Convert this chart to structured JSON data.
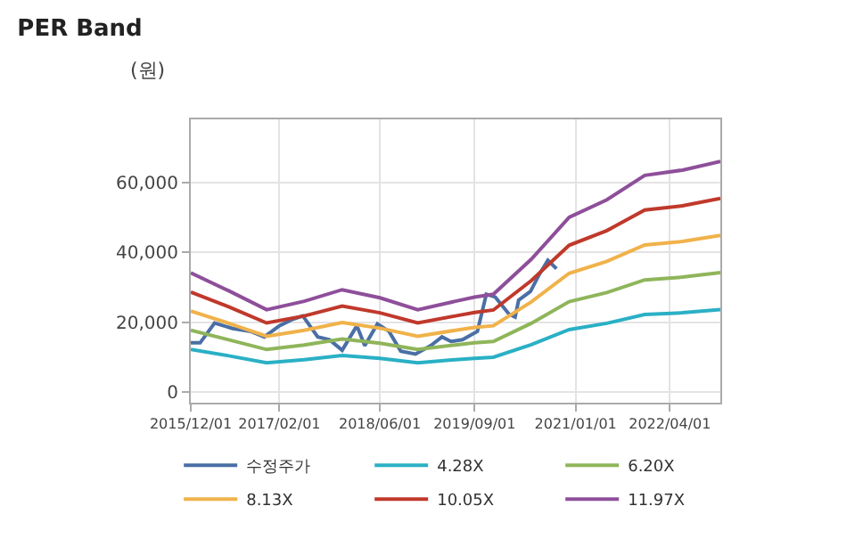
{
  "chart_data": {
    "type": "line",
    "title": "PER Band",
    "ylabel": "(원)",
    "x": [
      "2015-12-01",
      "2016-06-01",
      "2016-12-01",
      "2017-06-01",
      "2017-12-01",
      "2018-06-01",
      "2018-12-01",
      "2019-06-01",
      "2019-09-01",
      "2019-12-01",
      "2020-06-01",
      "2020-12-01",
      "2021-06-01",
      "2021-12-01",
      "2022-06-01",
      "2022-12-01"
    ],
    "series": [
      {
        "name": "수정주가",
        "color": "#4a6fa5",
        "x": [
          "2015-12-01",
          "2016-01-15",
          "2016-03-25",
          "2016-06-20",
          "2016-09-15",
          "2016-11-20",
          "2017-02-01",
          "2017-04-01",
          "2017-05-25",
          "2017-08-05",
          "2017-10-01",
          "2017-12-01",
          "2018-02-10",
          "2018-03-20",
          "2018-05-20",
          "2018-07-15",
          "2018-09-10",
          "2018-11-20",
          "2019-02-01",
          "2019-03-28",
          "2019-05-10",
          "2019-07-05",
          "2019-09-15",
          "2019-10-28",
          "2019-12-10",
          "2020-02-15",
          "2020-03-15",
          "2020-04-01",
          "2020-05-28",
          "2020-07-10",
          "2020-08-20",
          "2020-10-01"
        ],
        "values": [
          14100,
          14100,
          19800,
          18200,
          17400,
          15800,
          19000,
          20700,
          21800,
          15800,
          15000,
          12000,
          19000,
          13300,
          19500,
          17400,
          11700,
          10900,
          13300,
          15800,
          14500,
          15000,
          17400,
          28000,
          27200,
          22300,
          21500,
          26300,
          28800,
          33700,
          37700,
          35300
        ]
      },
      {
        "name": "4.28X",
        "color": "#2ab0c5",
        "values": [
          12200,
          10400,
          8400,
          9300,
          10500,
          9700,
          8400,
          9300,
          9700,
          10000,
          13600,
          17900,
          19700,
          22200,
          22700,
          23600
        ]
      },
      {
        "name": "6.20X",
        "color": "#8fb55a",
        "values": [
          17700,
          15000,
          12200,
          13500,
          15200,
          14000,
          12200,
          13500,
          14100,
          14500,
          19700,
          25900,
          28500,
          32100,
          32900,
          34200
        ]
      },
      {
        "name": "8.13X",
        "color": "#f0b24a",
        "values": [
          23200,
          19700,
          16000,
          17700,
          19900,
          18300,
          16000,
          17700,
          18500,
          19000,
          25800,
          34000,
          37400,
          42100,
          43100,
          44800
        ]
      },
      {
        "name": "10.05X",
        "color": "#c0392b",
        "values": [
          28600,
          24400,
          19800,
          21800,
          24600,
          22700,
          19800,
          21800,
          22800,
          23500,
          31900,
          42000,
          46200,
          52100,
          53300,
          55400
        ]
      },
      {
        "name": "11.97X",
        "color": "#8e4f9a",
        "values": [
          34100,
          29000,
          23600,
          26000,
          29300,
          27000,
          23600,
          26000,
          27200,
          28000,
          38000,
          50000,
          55000,
          62000,
          63500,
          66000
        ]
      }
    ],
    "xlim": [
      "2015-12-01",
      "2022-12-01"
    ],
    "xticks": [
      {
        "value": "2015-12-01",
        "label": "2015/12/01"
      },
      {
        "value": "2017-02-01",
        "label": "2017/02/01"
      },
      {
        "value": "2018-06-01",
        "label": "2018/06/01"
      },
      {
        "value": "2019-09-01",
        "label": "2019/09/01"
      },
      {
        "value": "2021-01-01",
        "label": "2021/01/01"
      },
      {
        "value": "2022-04-01",
        "label": "2022/04/01"
      }
    ],
    "ylim": [
      -3000,
      78000
    ],
    "yticks": [
      0,
      {
        "value": 20000,
        "label": "20,000"
      },
      {
        "value": 40000,
        "label": "40,000"
      },
      {
        "value": 60000,
        "label": "60,000"
      }
    ],
    "grid": true,
    "legend": "bottom",
    "marker": "none",
    "line_style": "solid"
  }
}
